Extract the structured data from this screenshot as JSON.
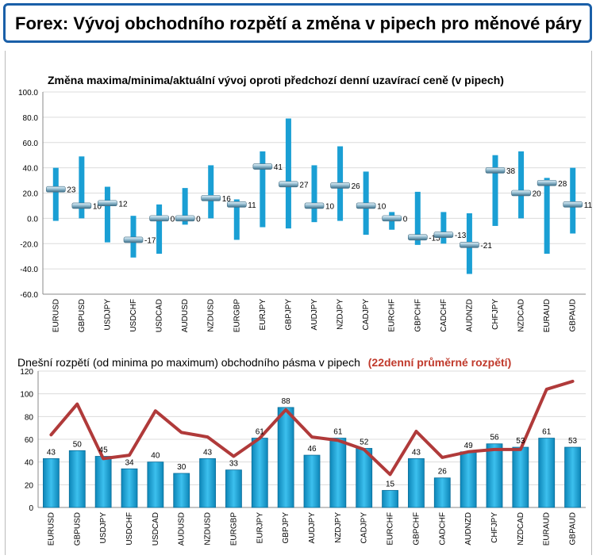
{
  "header": {
    "title": "Forex: Vývoj obchodního rozpětí a změna v pipech pro měnové páry"
  },
  "colors": {
    "accent": "#1a9fd4",
    "line": "#b03a3a",
    "header_border": "#1a5fa8"
  },
  "chart_data": [
    {
      "type": "range",
      "title": "Změna maxima/minima/aktuální vývoj oproti předchozí denní uzavírací ceně (v pipech)",
      "ylim": [
        -60,
        100
      ],
      "yticks": [
        "100.0",
        "80.0",
        "60.0",
        "40.0",
        "20.0",
        "0.0",
        "-20.0",
        "-40.0",
        "-60.0"
      ],
      "grid": true,
      "categories": [
        "EURUSD",
        "GBPUSD",
        "USDJPY",
        "USDCHF",
        "USDCAD",
        "AUDUSD",
        "NZDUSD",
        "EURGBP",
        "EURJPY",
        "GBPJPY",
        "AUDJPY",
        "NZDJPY",
        "CADJPY",
        "EURCHF",
        "GBPCHF",
        "CADCHF",
        "AUDNZD",
        "CHFJPY",
        "NZDCAD",
        "EURAUD",
        "GBPAUD"
      ],
      "high": [
        40,
        49,
        25,
        2,
        11,
        24,
        42,
        15,
        53,
        79,
        42,
        57,
        37,
        5,
        21,
        5,
        4,
        50,
        53,
        32,
        40
      ],
      "low": [
        -2,
        0,
        -19,
        -31,
        -28,
        -5,
        0,
        -17,
        -7,
        -8,
        -3,
        -2,
        -13,
        -9,
        -21,
        -20,
        -44,
        -6,
        0,
        -28,
        -12
      ],
      "current": [
        23,
        10,
        12,
        -17,
        0,
        0,
        16,
        11,
        41,
        27,
        10,
        26,
        10,
        0,
        -15,
        -13,
        -21,
        38,
        20,
        28,
        11
      ]
    },
    {
      "type": "bar",
      "title": "Dnešní rozpětí (od minima po maximum) obchodního pásma v pipech",
      "title_highlight": "(22denní průměrné rozpětí)",
      "ylim": [
        0,
        120
      ],
      "yticks": [
        "120",
        "100",
        "80",
        "60",
        "40",
        "20",
        "0"
      ],
      "grid": true,
      "categories": [
        "EURUSD",
        "GBPUSD",
        "USDJPY",
        "USDCHF",
        "USDCAD",
        "AUDUSD",
        "NZDUSD",
        "EURGBP",
        "EURJPY",
        "GBPJPY",
        "AUDJPY",
        "NZDJPY",
        "CADJPY",
        "EURCHF",
        "GBPCHF",
        "CADCHF",
        "AUDNZD",
        "CHFJPY",
        "NZDCAD",
        "EURAUD",
        "GBPAUD"
      ],
      "values": [
        43,
        50,
        45,
        34,
        40,
        30,
        43,
        33,
        61,
        88,
        46,
        61,
        52,
        15,
        43,
        26,
        49,
        56,
        53,
        61,
        53
      ],
      "average": [
        64,
        91,
        43,
        46,
        85,
        66,
        62,
        45,
        61,
        86,
        62,
        59,
        51,
        29,
        67,
        44,
        49,
        51,
        51,
        104,
        111
      ]
    }
  ]
}
